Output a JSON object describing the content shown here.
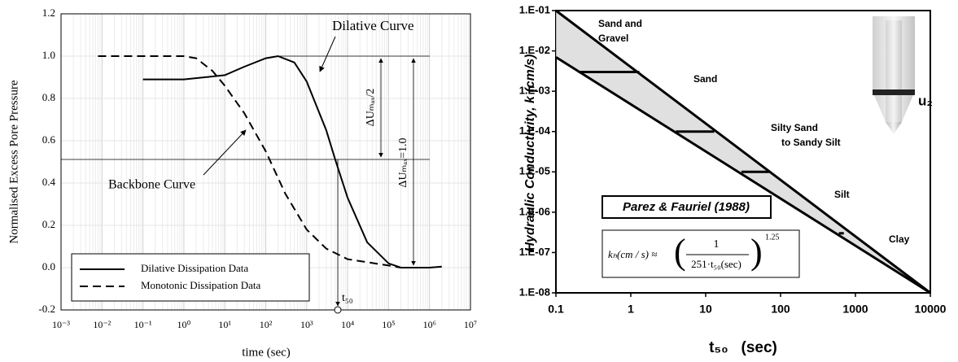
{
  "chart_data": [
    {
      "type": "line",
      "xscale": "log",
      "xlim": [
        0.001,
        10000000
      ],
      "ylim": [
        -0.2,
        1.2
      ],
      "xticks": [
        {
          "value": 0.001,
          "label": "10⁻³"
        },
        {
          "value": 0.01,
          "label": "10⁻²"
        },
        {
          "value": 0.1,
          "label": "10⁻¹"
        },
        {
          "value": 1,
          "label": "10⁰"
        },
        {
          "value": 10,
          "label": "10¹"
        },
        {
          "value": 100,
          "label": "10²"
        },
        {
          "value": 1000,
          "label": "10³"
        },
        {
          "value": 10000,
          "label": "10⁴"
        },
        {
          "value": 100000,
          "label": "10⁵"
        },
        {
          "value": 1000000,
          "label": "10⁶"
        },
        {
          "value": 10000000,
          "label": "10⁷"
        }
      ],
      "yticks": [
        -0.2,
        {
          "value": 0,
          "label": "0.0"
        },
        0.2,
        0.4,
        0.6,
        0.8,
        {
          "value": 1,
          "label": "1.0"
        },
        1.2
      ],
      "grid": true,
      "x_label": "time (sec)",
      "y_label": "Normalised Excess Pore Pressure",
      "legend": "lower left",
      "annotations": [
        "Dilative Curve",
        "Backbone Curve",
        "ΔUₘₐₓ/2",
        "ΔUₘₐₓ=1.0",
        "t₅₀"
      ],
      "series": [
        {
          "name": "Dilative Dissipation Data",
          "color": "#000000",
          "dash": false,
          "x": [
            0.1,
            1,
            10,
            30,
            100,
            200,
            500,
            1000,
            3000,
            5000,
            10000,
            30000,
            100000,
            200000,
            1000000,
            2000000
          ],
          "values": [
            0.89,
            0.89,
            0.91,
            0.95,
            0.99,
            1.0,
            0.97,
            0.88,
            0.65,
            0.51,
            0.33,
            0.12,
            0.02,
            0.0,
            0.0,
            0.005
          ]
        },
        {
          "name": "Monotonic Dissipation Data",
          "color": "#000000",
          "dash": true,
          "x": [
            0.008,
            1,
            2,
            5,
            10,
            30,
            100,
            300,
            1000,
            3000,
            10000,
            100000,
            200000
          ],
          "values": [
            1.0,
            1.0,
            0.99,
            0.93,
            0.86,
            0.73,
            0.55,
            0.35,
            0.18,
            0.09,
            0.04,
            0.01,
            0.0
          ]
        }
      ]
    },
    {
      "type": "line",
      "xscale": "log",
      "yscale": "log",
      "xlim": [
        0.1,
        10000
      ],
      "ylim": [
        1e-08,
        0.1
      ],
      "xticks": [
        0.1,
        1,
        10,
        100,
        1000,
        10000
      ],
      "yticks": [
        {
          "value": 0.1,
          "label": "1.E-01"
        },
        {
          "value": 0.01,
          "label": "1.E-02"
        },
        {
          "value": 0.001,
          "label": "1.E-03"
        },
        {
          "value": 0.0001,
          "label": "1.E-04"
        },
        {
          "value": 1e-05,
          "label": "1.E-05"
        },
        {
          "value": 1e-06,
          "label": "1.E-06"
        },
        {
          "value": 1e-07,
          "label": "1.E-07"
        },
        {
          "value": 1e-08,
          "label": "1.E-08"
        }
      ],
      "grid": false,
      "x_label": "t₅₀   (sec)",
      "y_label": "Hydraulic Conductivity, k (cm/s)",
      "zone_labels": [
        "Sand and",
        "Gravel",
        "Sand",
        "Silty Sand",
        "to Sandy Silt",
        "Silt",
        "Clay"
      ],
      "source": "Parez & Fauriel (1988)",
      "probe_label": "u₂",
      "formula": {
        "lhs": "kₕ(cm / s) ≈",
        "numerator": "1",
        "denominator": "251·t₅₀(sec)",
        "exponent": "1.25"
      },
      "series": [
        {
          "color": "#000000",
          "x": [
            0.1,
            10000
          ],
          "values": [
            0.1,
            1e-08
          ]
        },
        {
          "color": "#000000",
          "x": [
            0.1,
            10000
          ],
          "values": [
            0.007,
            1e-08
          ]
        },
        {
          "color": "#000000",
          "x": [
            0.2,
            1.3
          ],
          "values": [
            0.003,
            0.003
          ]
        },
        {
          "color": "#000000",
          "x": [
            4,
            13
          ],
          "values": [
            0.0001,
            0.0001
          ]
        },
        {
          "color": "#000000",
          "x": [
            30,
            70
          ],
          "values": [
            1e-05,
            1e-05
          ]
        },
        {
          "color": "#000000",
          "x": [
            600,
            700
          ],
          "values": [
            3e-07,
            3e-07
          ]
        }
      ]
    }
  ]
}
